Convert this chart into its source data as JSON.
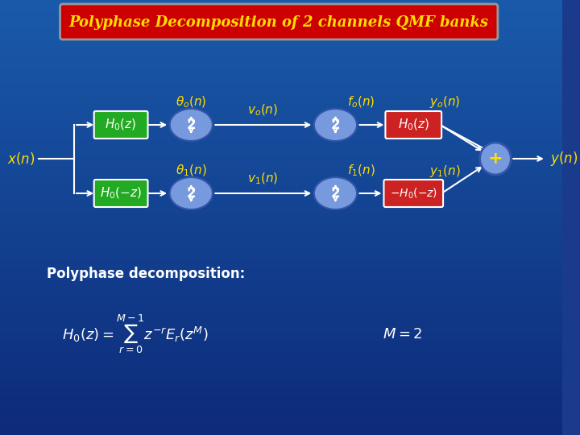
{
  "title": "Polyphase Decomposition of 2 channels QMF banks",
  "bg_color": "#1a3a8c",
  "bg_gradient_top": "#0a1a5c",
  "bg_gradient_bottom": "#1a4aaa",
  "title_bg": "#cc0000",
  "title_text_color": "#ffdd00",
  "title_fontsize": 14,
  "green_box_color": "#22aa22",
  "red_box_color": "#cc2222",
  "blue_ellipse_color": "#7799dd",
  "white_color": "#ffffff",
  "yellow_color": "#ffdd00",
  "arrow_color": "#ffffff",
  "box_text_color": "#ffffff",
  "label_color": "#ffdd00",
  "poly_text": "Polyphase decomposition:",
  "poly_text_color": "#ffffff",
  "formula_color": "#ffffff"
}
